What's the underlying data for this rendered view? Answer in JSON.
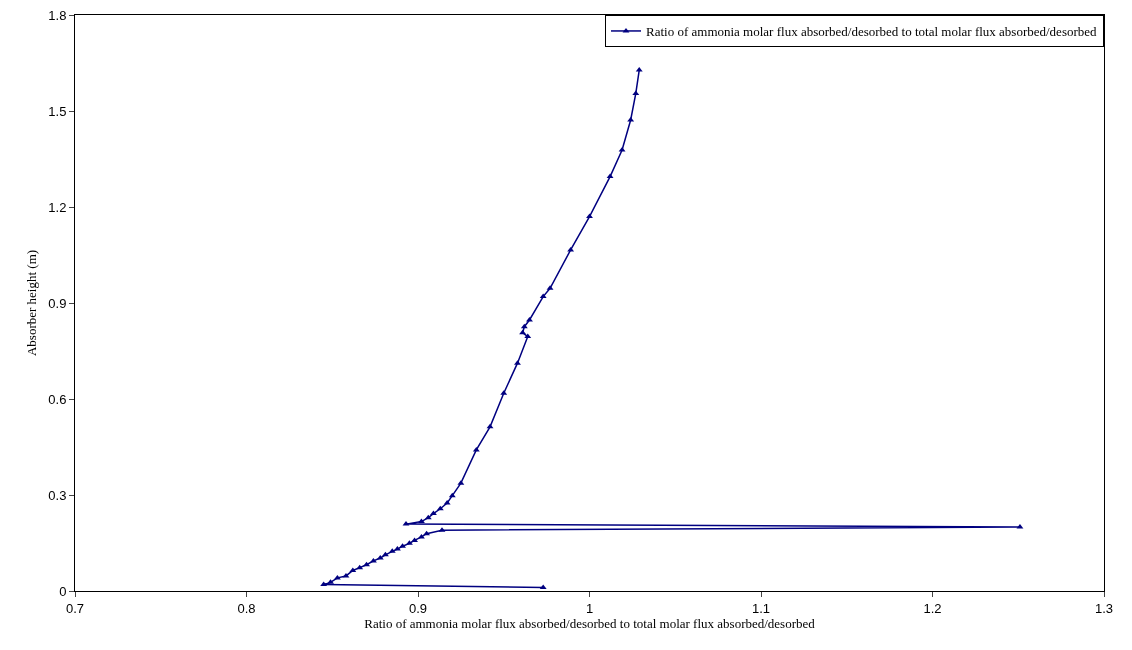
{
  "chart_data": {
    "type": "line",
    "xlabel": "Ratio of ammonia molar flux absorbed/desorbed to total molar flux absorbed/desorbed",
    "ylabel": "Absorber height (m)",
    "x": [
      0.973,
      0.845,
      0.849,
      0.853,
      0.858,
      0.862,
      0.866,
      0.87,
      0.874,
      0.878,
      0.881,
      0.885,
      0.888,
      0.891,
      0.895,
      0.898,
      0.902,
      0.905,
      0.914,
      1.251,
      0.893,
      0.902,
      0.906,
      0.909,
      0.913,
      0.917,
      0.92,
      0.925,
      0.934,
      0.942,
      0.95,
      0.958,
      0.964,
      0.961,
      0.962,
      0.965,
      0.973,
      0.977,
      0.989,
      1.0,
      1.012,
      1.019,
      1.024,
      1.027,
      1.029
    ],
    "series": [
      {
        "name": "Ratio of ammonia molar flux absorbed/desorbed to total molar flux absorbed/desorbed",
        "color": "#000080",
        "values": [
          0.011,
          0.02,
          0.027,
          0.041,
          0.047,
          0.064,
          0.073,
          0.082,
          0.094,
          0.103,
          0.113,
          0.124,
          0.131,
          0.14,
          0.149,
          0.158,
          0.169,
          0.179,
          0.19,
          0.2,
          0.209,
          0.217,
          0.229,
          0.242,
          0.257,
          0.275,
          0.298,
          0.337,
          0.441,
          0.513,
          0.618,
          0.712,
          0.795,
          0.807,
          0.826,
          0.847,
          0.92,
          0.946,
          1.066,
          1.17,
          1.295,
          1.378,
          1.472,
          1.555,
          1.628
        ]
      }
    ],
    "xlim": [
      0.7,
      1.3
    ],
    "xticks": [
      0.7,
      0.8,
      0.9,
      1,
      1.1,
      1.2,
      1.3
    ],
    "ylim": [
      0,
      1.8
    ],
    "yticks": [
      0,
      0.3,
      0.6,
      0.9,
      1.2,
      1.5,
      1.8
    ],
    "grid": false,
    "legend": "top right",
    "marker": "triangle",
    "line_style": "solid"
  }
}
